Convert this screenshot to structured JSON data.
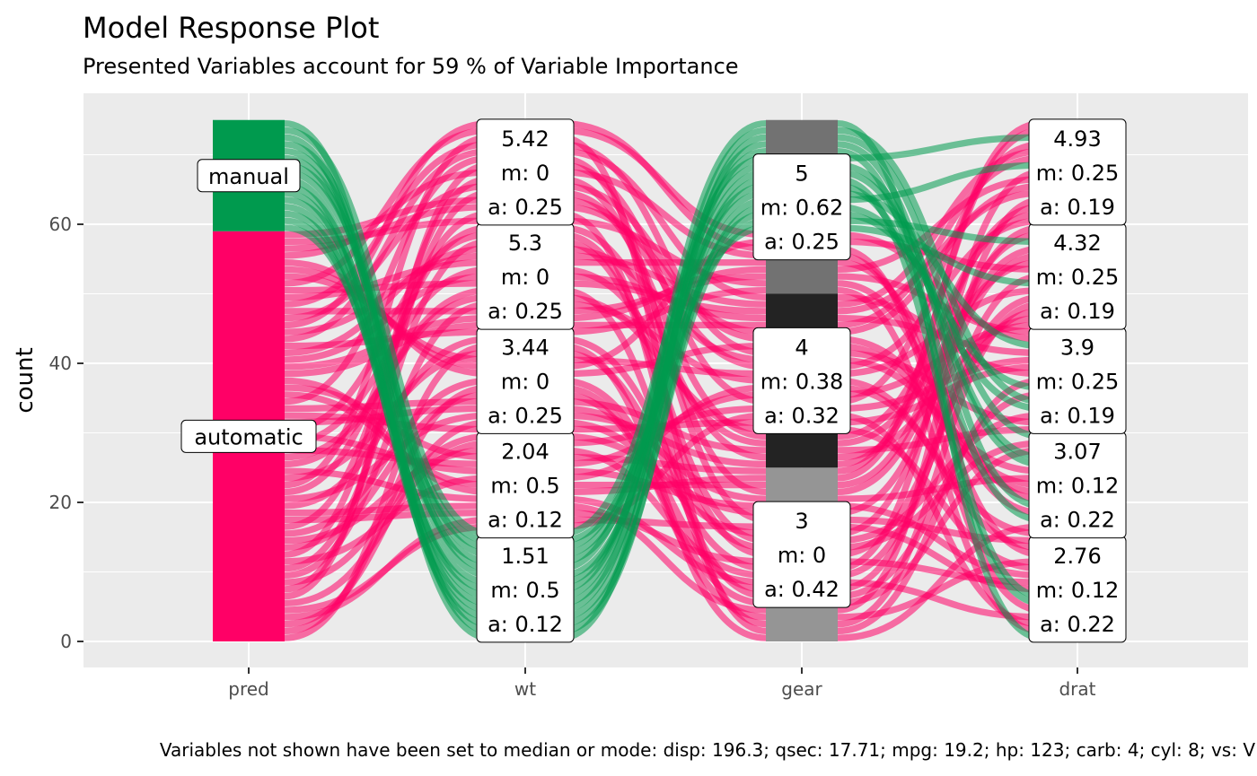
{
  "chart_data": {
    "type": "alluvial",
    "title": "Model Response Plot",
    "subtitle": "Presented Variables account for 59 % of Variable Importance",
    "ylabel": "count",
    "ylim": [
      0,
      75
    ],
    "yticks": [
      0,
      20,
      40,
      60
    ],
    "axes": [
      "pred",
      "wt",
      "gear",
      "drat"
    ],
    "colors": {
      "manual": "#009a4e",
      "automatic": "#ff0066",
      "panel_bg": "#ebebeb",
      "grid": "#ffffff",
      "gear_strata": [
        "#959595",
        "#232323",
        "#727272"
      ]
    },
    "pred_levels": [
      {
        "name": "automatic",
        "count": 59
      },
      {
        "name": "manual",
        "count": 16
      }
    ],
    "wt_levels": [
      {
        "name": "1.51",
        "count": 15,
        "m": "0.5",
        "a": "0.12"
      },
      {
        "name": "2.04",
        "count": 15,
        "m": "0.5",
        "a": "0.12"
      },
      {
        "name": "3.44",
        "count": 15,
        "m": "0",
        "a": "0.25"
      },
      {
        "name": "5.3",
        "count": 15,
        "m": "0",
        "a": "0.25"
      },
      {
        "name": "5.42",
        "count": 15,
        "m": "0",
        "a": "0.25"
      }
    ],
    "gear_levels": [
      {
        "name": "3",
        "count": 25,
        "m": "0",
        "a": "0.42"
      },
      {
        "name": "4",
        "count": 25,
        "m": "0.38",
        "a": "0.32"
      },
      {
        "name": "5",
        "count": 25,
        "m": "0.62",
        "a": "0.25"
      }
    ],
    "drat_levels": [
      {
        "name": "2.76",
        "count": 15,
        "m": "0.12",
        "a": "0.22"
      },
      {
        "name": "3.07",
        "count": 15,
        "m": "0.12",
        "a": "0.22"
      },
      {
        "name": "3.9",
        "count": 15,
        "m": "0.25",
        "a": "0.19"
      },
      {
        "name": "4.32",
        "count": 15,
        "m": "0.25",
        "a": "0.19"
      },
      {
        "name": "4.93",
        "count": 15,
        "m": "0.25",
        "a": "0.19"
      }
    ],
    "caption": "Variables not shown have been set to median or mode: disp: 196.3; qsec: 17.71; mpg: 19.2; hp: 123; carb: 4; cyl: 8; vs: V"
  }
}
